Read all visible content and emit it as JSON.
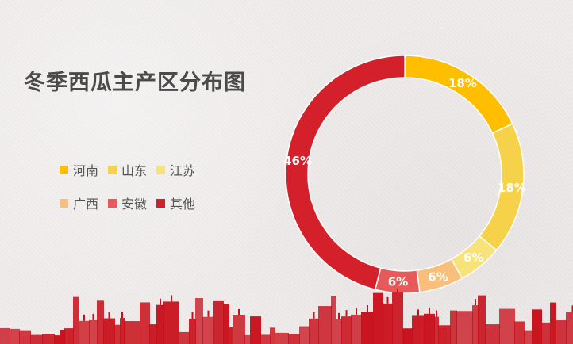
{
  "chart_data": {
    "type": "pie",
    "title": "冬季西瓜主产区分布图",
    "categories": [
      "河南",
      "山东",
      "江苏",
      "广西",
      "安徽",
      "其他"
    ],
    "values": [
      18,
      18,
      6,
      6,
      6,
      46
    ],
    "labels": [
      "18%",
      "18%",
      "6%",
      "6%",
      "6%",
      "46%"
    ],
    "colors": [
      "#ffbf00",
      "#f5d24a",
      "#f8e27a",
      "#f9bf7a",
      "#e85a5a",
      "#d3202a"
    ],
    "legend_position": "left",
    "donut": true
  },
  "skyline_color": "#c8101b"
}
